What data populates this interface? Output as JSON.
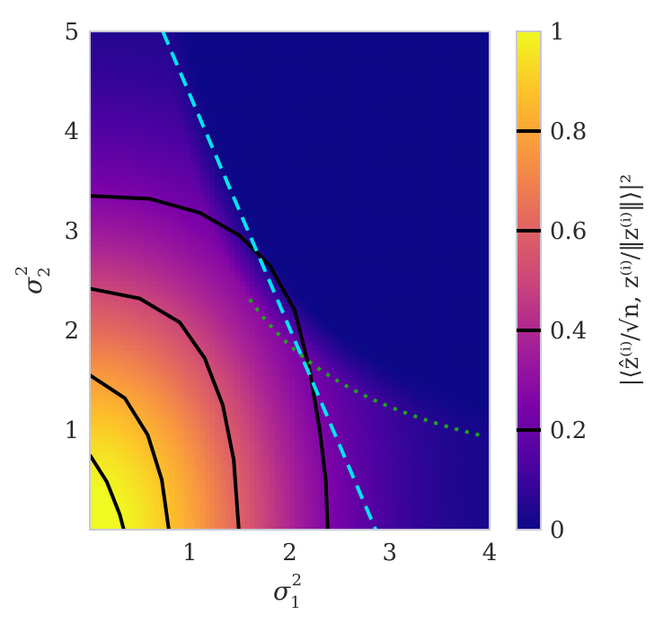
{
  "chart_data": {
    "type": "heatmap",
    "title": "",
    "xlabel": {
      "base": "σ",
      "sub": "1",
      "sup": "2"
    },
    "ylabel": {
      "base": "σ",
      "sub": "2",
      "sup": "2"
    },
    "xlim": [
      0,
      4
    ],
    "ylim": [
      0,
      5
    ],
    "xticks": [
      "1",
      "2",
      "3",
      "4"
    ],
    "xtick_values": [
      1,
      2,
      3,
      4
    ],
    "yticks": [
      "1",
      "2",
      "3",
      "4",
      "5"
    ],
    "ytick_values": [
      1,
      2,
      3,
      4,
      5
    ],
    "grid": false,
    "colormap": "plasma",
    "colorbar": {
      "label": "|⟨ẑ⁽ⁱ⁾/√n, z⁽ⁱ⁾/‖z⁽ⁱ⁾‖⟩|²",
      "range": [
        0,
        1
      ],
      "ticks": [
        "0",
        "0.2",
        "0.4",
        "0.6",
        "0.8",
        "1"
      ],
      "tick_values": [
        0,
        0.2,
        0.4,
        0.6,
        0.8,
        1
      ],
      "contour_levels": [
        0.2,
        0.4,
        0.6,
        0.8
      ]
    },
    "contours": [
      {
        "level": 0.2,
        "points": [
          [
            0,
            3.35
          ],
          [
            0.6,
            3.32
          ],
          [
            1.1,
            3.18
          ],
          [
            1.5,
            2.95
          ],
          [
            1.8,
            2.65
          ],
          [
            2.05,
            2.2
          ],
          [
            2.2,
            1.6
          ],
          [
            2.3,
            1.0
          ],
          [
            2.36,
            0.5
          ],
          [
            2.38,
            0
          ]
        ]
      },
      {
        "level": 0.4,
        "points": [
          [
            0,
            2.42
          ],
          [
            0.5,
            2.32
          ],
          [
            0.9,
            2.08
          ],
          [
            1.15,
            1.72
          ],
          [
            1.33,
            1.25
          ],
          [
            1.44,
            0.7
          ],
          [
            1.49,
            0
          ]
        ]
      },
      {
        "level": 0.6,
        "points": [
          [
            0,
            1.55
          ],
          [
            0.35,
            1.32
          ],
          [
            0.58,
            0.95
          ],
          [
            0.72,
            0.5
          ],
          [
            0.79,
            0
          ]
        ]
      },
      {
        "level": 0.8,
        "points": [
          [
            0,
            0.75
          ],
          [
            0.17,
            0.48
          ],
          [
            0.3,
            0.15
          ],
          [
            0.34,
            0
          ]
        ]
      }
    ],
    "threshold_line": {
      "style": "dashed",
      "color": "#00e5f0",
      "points": [
        [
          0.73,
          5
        ],
        [
          2.86,
          0
        ]
      ]
    },
    "hyperbola": {
      "style": "dotted",
      "color": "#1fa31f",
      "product": 3.7,
      "x_range": [
        1.6,
        3.95
      ]
    },
    "heatmap_fn": {
      "center": [
        0,
        0
      ],
      "scale_x": 4.2,
      "scale_y": 5.9,
      "shape": "exp",
      "cutoff_product": 3.7
    }
  }
}
